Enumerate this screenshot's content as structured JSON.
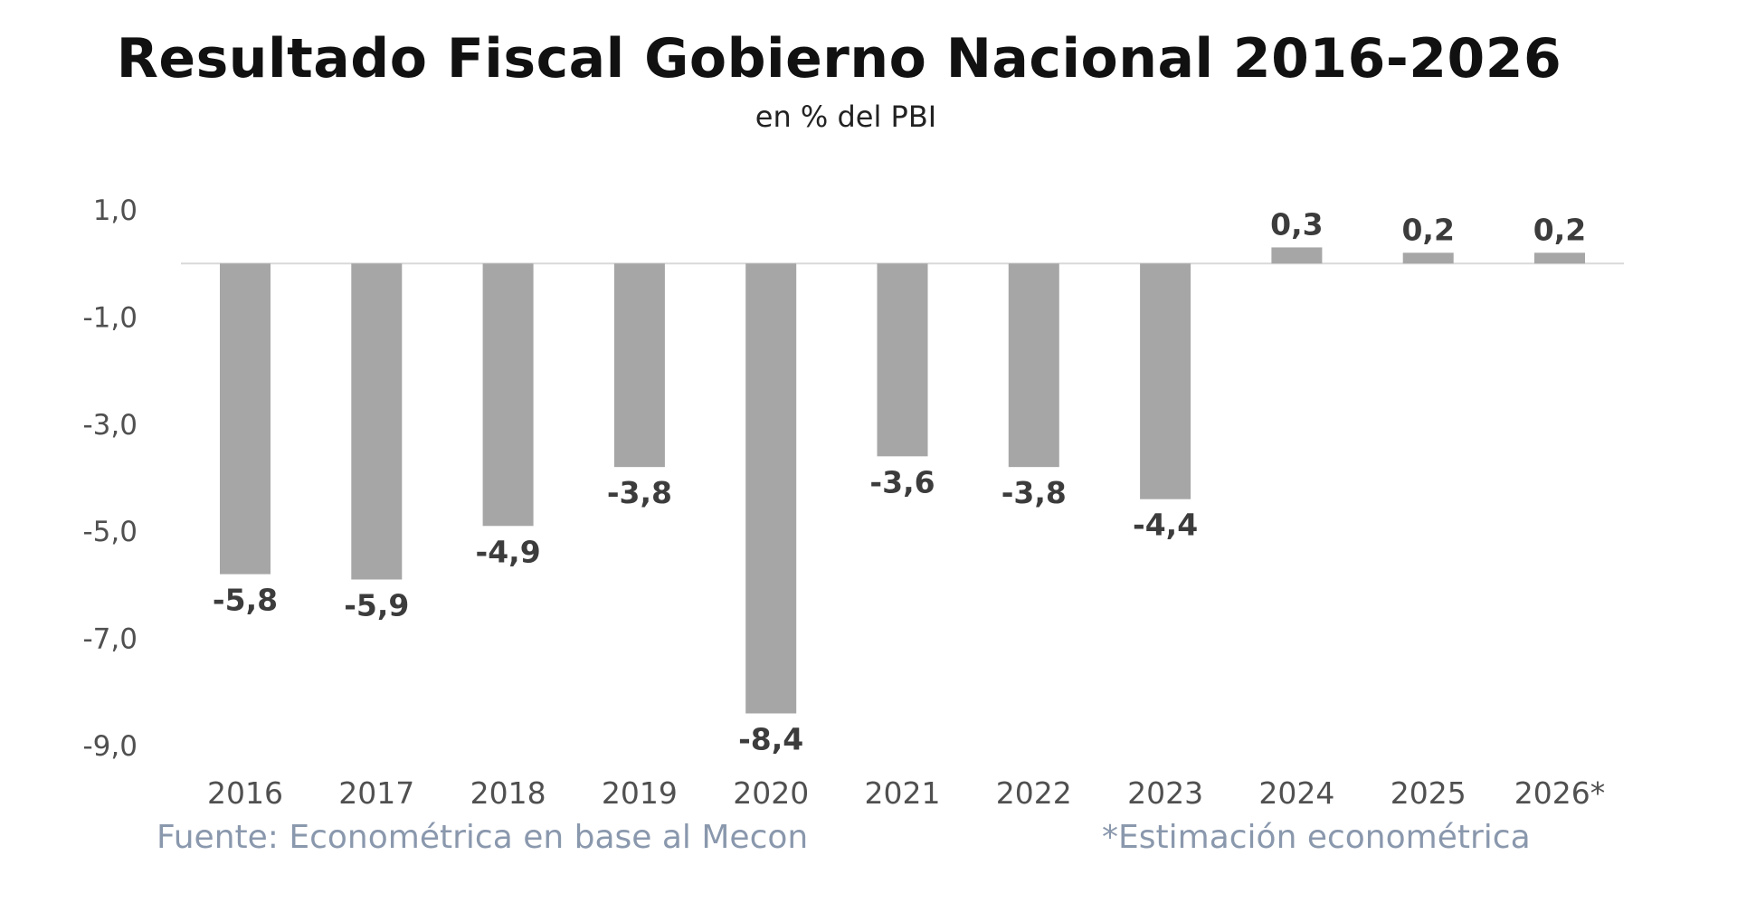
{
  "chart_data": {
    "type": "bar",
    "title": "Resultado Fiscal Gobierno Nacional 2016-2026",
    "subtitle": "en % del PBI",
    "categories": [
      "2016",
      "2017",
      "2018",
      "2019",
      "2020",
      "2021",
      "2022",
      "2023",
      "2024",
      "2025",
      "2026*"
    ],
    "values": [
      -5.8,
      -5.9,
      -4.9,
      -3.8,
      -8.4,
      -3.6,
      -3.8,
      -4.4,
      0.3,
      0.2,
      0.2
    ],
    "data_labels": [
      "-5,8",
      "-5,9",
      "-4,9",
      "-3,8",
      "-8,4",
      "-3,6",
      "-3,8",
      "-4,4",
      "0,3",
      "0,2",
      "0,2"
    ],
    "yticks": [
      1,
      -1,
      -3,
      -5,
      -7,
      -9
    ],
    "ytick_labels": [
      "1,0",
      "-1,0",
      "-3,0",
      "-5,0",
      "-7,0",
      "-9,0"
    ],
    "ylim": [
      -9,
      1
    ],
    "xlabel": "",
    "ylabel": "",
    "grid": false,
    "bar_color": "#a6a6a6",
    "zero_line_color": "#d9d9d9"
  },
  "footer": {
    "source": "Fuente: Econométrica en base al Mecon",
    "note": "*Estimación econométrica"
  }
}
